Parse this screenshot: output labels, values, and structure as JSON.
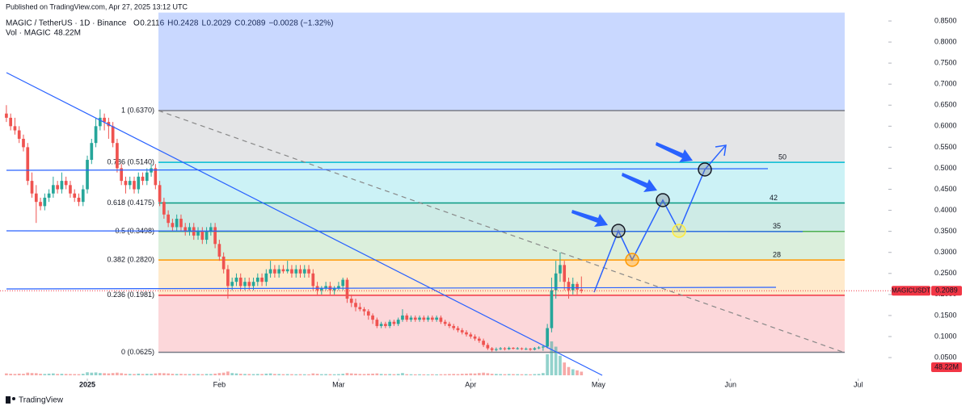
{
  "header": {
    "published": "Published on TradingView.com, Apr 27, 2025 13:12 UTC",
    "symbol": "MAGIC / TetherUS · 1D · Binance",
    "legend": [
      "O",
      "0.2116",
      "H",
      "0.2428",
      "L",
      "0.2029",
      "C",
      "0.2089",
      "−0.0028 (−1.32%)"
    ],
    "volume": "Vol · MAGIC",
    "volume_value": "48.22M"
  },
  "logo": "TradingView",
  "chart_data": {
    "type": "candlestick",
    "up_color": "#26a69a",
    "down_color": "#ef5350",
    "open": [
      0.63,
      0.62,
      0.6,
      0.59,
      0.57,
      0.55,
      0.47,
      0.44,
      0.42,
      0.41,
      0.43,
      0.44,
      0.46,
      0.45,
      0.47,
      0.46,
      0.44,
      0.43,
      0.42,
      0.45,
      0.52,
      0.56,
      0.6,
      0.62,
      0.61,
      0.6,
      0.56,
      0.5,
      0.47,
      0.46,
      0.47,
      0.45,
      0.48,
      0.47,
      0.49,
      0.5,
      0.46,
      0.42,
      0.39,
      0.37,
      0.36,
      0.38,
      0.36,
      0.35,
      0.36,
      0.34,
      0.35,
      0.33,
      0.35,
      0.36,
      0.32,
      0.29,
      0.26,
      0.22,
      0.23,
      0.24,
      0.22,
      0.23,
      0.22,
      0.23,
      0.24,
      0.23,
      0.25,
      0.26,
      0.25,
      0.26,
      0.255,
      0.26,
      0.25,
      0.26,
      0.25,
      0.26,
      0.25,
      0.22,
      0.21,
      0.215,
      0.22,
      0.21,
      0.215,
      0.22,
      0.235,
      0.19,
      0.18,
      0.17,
      0.165,
      0.16,
      0.15,
      0.14,
      0.125,
      0.13,
      0.125,
      0.135,
      0.13,
      0.14,
      0.15,
      0.14,
      0.145,
      0.14,
      0.145,
      0.14,
      0.145,
      0.14,
      0.145,
      0.135,
      0.13,
      0.125,
      0.12,
      0.115,
      0.11,
      0.105,
      0.1,
      0.095,
      0.09,
      0.08,
      0.072,
      0.068,
      0.07,
      0.072,
      0.07,
      0.073,
      0.071,
      0.072,
      0.07,
      0.071,
      0.069,
      0.072,
      0.074,
      0.076,
      0.12,
      0.21,
      0.25,
      0.27,
      0.23,
      0.21,
      0.225,
      0.2116
    ],
    "high": [
      0.65,
      0.63,
      0.62,
      0.6,
      0.58,
      0.56,
      0.49,
      0.46,
      0.43,
      0.44,
      0.45,
      0.48,
      0.47,
      0.49,
      0.48,
      0.47,
      0.45,
      0.44,
      0.46,
      0.53,
      0.57,
      0.62,
      0.64,
      0.63,
      0.62,
      0.61,
      0.57,
      0.51,
      0.48,
      0.48,
      0.48,
      0.49,
      0.49,
      0.5,
      0.51,
      0.51,
      0.47,
      0.43,
      0.4,
      0.38,
      0.39,
      0.39,
      0.37,
      0.37,
      0.37,
      0.36,
      0.36,
      0.36,
      0.37,
      0.37,
      0.33,
      0.3,
      0.27,
      0.24,
      0.25,
      0.25,
      0.24,
      0.24,
      0.24,
      0.25,
      0.25,
      0.26,
      0.28,
      0.27,
      0.27,
      0.27,
      0.28,
      0.27,
      0.27,
      0.27,
      0.27,
      0.27,
      0.26,
      0.23,
      0.22,
      0.23,
      0.23,
      0.22,
      0.23,
      0.24,
      0.24,
      0.2,
      0.19,
      0.18,
      0.17,
      0.165,
      0.155,
      0.145,
      0.135,
      0.135,
      0.14,
      0.14,
      0.145,
      0.165,
      0.155,
      0.15,
      0.15,
      0.15,
      0.15,
      0.15,
      0.15,
      0.15,
      0.15,
      0.14,
      0.135,
      0.13,
      0.125,
      0.12,
      0.115,
      0.11,
      0.105,
      0.1,
      0.095,
      0.085,
      0.075,
      0.074,
      0.075,
      0.075,
      0.076,
      0.075,
      0.075,
      0.074,
      0.074,
      0.073,
      0.075,
      0.077,
      0.08,
      0.13,
      0.24,
      0.28,
      0.3,
      0.28,
      0.24,
      0.24,
      0.23,
      0.2428
    ],
    "low": [
      0.61,
      0.59,
      0.58,
      0.56,
      0.54,
      0.46,
      0.43,
      0.37,
      0.4,
      0.4,
      0.42,
      0.43,
      0.44,
      0.44,
      0.45,
      0.43,
      0.42,
      0.41,
      0.41,
      0.44,
      0.51,
      0.55,
      0.59,
      0.59,
      0.57,
      0.55,
      0.49,
      0.46,
      0.44,
      0.45,
      0.44,
      0.44,
      0.46,
      0.46,
      0.48,
      0.45,
      0.41,
      0.38,
      0.36,
      0.35,
      0.35,
      0.35,
      0.34,
      0.34,
      0.33,
      0.33,
      0.32,
      0.32,
      0.34,
      0.31,
      0.28,
      0.25,
      0.19,
      0.21,
      0.22,
      0.21,
      0.21,
      0.21,
      0.21,
      0.22,
      0.22,
      0.22,
      0.24,
      0.24,
      0.24,
      0.25,
      0.25,
      0.24,
      0.24,
      0.24,
      0.24,
      0.24,
      0.21,
      0.2,
      0.2,
      0.21,
      0.2,
      0.2,
      0.21,
      0.21,
      0.18,
      0.17,
      0.16,
      0.16,
      0.15,
      0.14,
      0.13,
      0.12,
      0.12,
      0.12,
      0.12,
      0.125,
      0.125,
      0.135,
      0.135,
      0.135,
      0.135,
      0.135,
      0.135,
      0.135,
      0.135,
      0.135,
      0.13,
      0.125,
      0.12,
      0.115,
      0.11,
      0.105,
      0.1,
      0.095,
      0.09,
      0.085,
      0.075,
      0.068,
      0.064,
      0.065,
      0.068,
      0.067,
      0.068,
      0.069,
      0.069,
      0.068,
      0.068,
      0.066,
      0.067,
      0.07,
      0.066,
      0.072,
      0.11,
      0.19,
      0.23,
      0.21,
      0.19,
      0.2,
      0.2,
      0.2029
    ],
    "close": [
      0.62,
      0.6,
      0.59,
      0.57,
      0.55,
      0.47,
      0.44,
      0.42,
      0.41,
      0.43,
      0.44,
      0.46,
      0.45,
      0.47,
      0.46,
      0.44,
      0.43,
      0.42,
      0.45,
      0.52,
      0.56,
      0.6,
      0.62,
      0.61,
      0.6,
      0.56,
      0.5,
      0.47,
      0.46,
      0.47,
      0.45,
      0.48,
      0.47,
      0.49,
      0.5,
      0.46,
      0.42,
      0.39,
      0.37,
      0.36,
      0.38,
      0.36,
      0.35,
      0.36,
      0.34,
      0.35,
      0.33,
      0.35,
      0.36,
      0.32,
      0.29,
      0.26,
      0.22,
      0.23,
      0.24,
      0.22,
      0.23,
      0.22,
      0.23,
      0.24,
      0.23,
      0.25,
      0.26,
      0.25,
      0.26,
      0.255,
      0.26,
      0.25,
      0.26,
      0.25,
      0.26,
      0.25,
      0.22,
      0.21,
      0.215,
      0.22,
      0.21,
      0.215,
      0.22,
      0.235,
      0.19,
      0.18,
      0.17,
      0.165,
      0.16,
      0.15,
      0.14,
      0.125,
      0.13,
      0.125,
      0.135,
      0.13,
      0.14,
      0.15,
      0.14,
      0.145,
      0.14,
      0.145,
      0.14,
      0.145,
      0.14,
      0.145,
      0.135,
      0.13,
      0.125,
      0.12,
      0.115,
      0.11,
      0.105,
      0.1,
      0.095,
      0.09,
      0.08,
      0.072,
      0.068,
      0.07,
      0.072,
      0.07,
      0.073,
      0.071,
      0.072,
      0.07,
      0.071,
      0.069,
      0.072,
      0.074,
      0.076,
      0.12,
      0.21,
      0.25,
      0.27,
      0.23,
      0.21,
      0.225,
      0.2117,
      0.2089
    ],
    "volume": [
      25,
      20,
      18,
      22,
      20,
      35,
      30,
      28,
      20,
      18,
      22,
      25,
      18,
      20,
      18,
      17,
      16,
      15,
      20,
      40,
      35,
      38,
      30,
      28,
      25,
      30,
      35,
      28,
      20,
      18,
      17,
      22,
      18,
      20,
      19,
      25,
      30,
      28,
      25,
      20,
      18,
      19,
      17,
      16,
      18,
      17,
      15,
      18,
      17,
      22,
      30,
      35,
      50,
      30,
      25,
      20,
      18,
      17,
      16,
      18,
      17,
      22,
      25,
      18,
      17,
      15,
      16,
      15,
      14,
      15,
      14,
      13,
      25,
      20,
      15,
      16,
      15,
      14,
      16,
      20,
      30,
      25,
      22,
      18,
      17,
      20,
      22,
      25,
      18,
      16,
      17,
      15,
      18,
      30,
      15,
      14,
      13,
      14,
      13,
      12,
      14,
      13,
      14,
      15,
      17,
      18,
      16,
      20,
      22,
      25,
      24,
      30,
      35,
      28,
      20,
      18,
      16,
      15,
      17,
      16,
      15,
      14,
      15,
      13,
      16,
      18,
      30,
      280,
      450,
      380,
      260,
      170,
      110,
      80,
      65,
      48.22
    ],
    "xlim": [
      -1.5,
      206.3
    ],
    "xticks": [
      {
        "value": 19,
        "label": "2025"
      },
      {
        "value": 50,
        "label": "Feb"
      },
      {
        "value": 78,
        "label": "Mar"
      },
      {
        "value": 109,
        "label": "Apr"
      },
      {
        "value": 139,
        "label": "May"
      },
      {
        "value": 170,
        "label": "Jun"
      },
      {
        "value": 200,
        "label": "Jul"
      }
    ],
    "ylim": [
      0,
      0.87
    ],
    "yticks": [
      {
        "value": 0.05,
        "label": "0.0500"
      },
      {
        "value": 0.1,
        "label": "0.1000"
      },
      {
        "value": 0.15,
        "label": "0.1500"
      },
      {
        "value": 0.2,
        "label": "0.2000"
      },
      {
        "value": 0.25,
        "label": "0.2500"
      },
      {
        "value": 0.3,
        "label": "0.3000"
      },
      {
        "value": 0.35,
        "label": "0.3500"
      },
      {
        "value": 0.4,
        "label": "0.4000"
      },
      {
        "value": 0.45,
        "label": "0.4500"
      },
      {
        "value": 0.5,
        "label": "0.5000"
      },
      {
        "value": 0.55,
        "label": "0.5500"
      },
      {
        "value": 0.6,
        "label": "0.6000"
      },
      {
        "value": 0.65,
        "label": "0.6500"
      },
      {
        "value": 0.7,
        "label": "0.7000"
      },
      {
        "value": 0.75,
        "label": "0.7500"
      },
      {
        "value": 0.8,
        "label": "0.8000"
      },
      {
        "value": 0.85,
        "label": "0.8500"
      }
    ],
    "fib": [
      {
        "label": "0 (0.0625)",
        "value": 0.0625,
        "color": "#787b86"
      },
      {
        "label": "0.236 (0.1981)",
        "value": 0.1981,
        "color": "#f23645"
      },
      {
        "label": "0.382 (0.2820)",
        "value": 0.282,
        "color": "#ff9800"
      },
      {
        "label": "0.5 (0.3498)",
        "value": 0.3498,
        "color": "#4caf50"
      },
      {
        "label": "0.618 (0.4175)",
        "value": 0.4175,
        "color": "#089981"
      },
      {
        "label": "0.786 (0.5140)",
        "value": 0.514,
        "color": "#00bcd4"
      },
      {
        "label": "1 (0.6370)",
        "value": 0.637,
        "color": "#787b86"
      }
    ],
    "top_band_color": "#2962ff",
    "targets": [
      50,
      42,
      35,
      28
    ],
    "last_price": {
      "name": "MAGICUSDT",
      "value": 0.2089,
      "label": "0.2089"
    }
  }
}
